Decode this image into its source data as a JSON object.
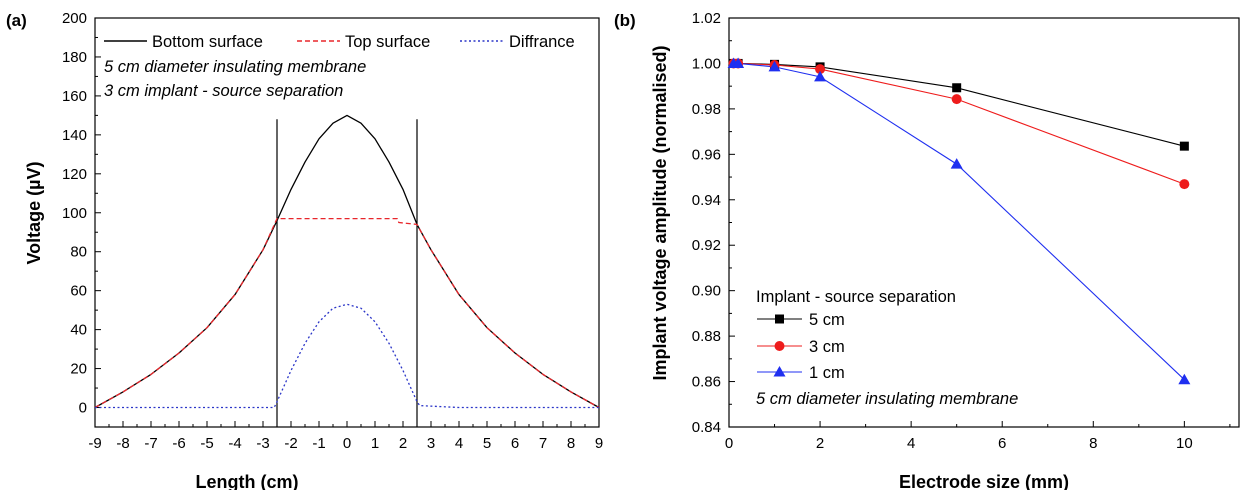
{
  "chart_data": [
    {
      "panel_label": "(a)",
      "type": "line",
      "xlabel": "Length (cm)",
      "ylabel": "Voltage (µV)",
      "xlim": [
        -9,
        9
      ],
      "ylim": [
        -10,
        200
      ],
      "xticks": [
        -9,
        -8,
        -7,
        -6,
        -5,
        -4,
        -3,
        -2,
        -1,
        0,
        1,
        2,
        3,
        4,
        5,
        6,
        7,
        8,
        9
      ],
      "yticks": [
        0,
        20,
        40,
        60,
        80,
        100,
        120,
        140,
        160,
        180,
        200
      ],
      "vertical_lines": [
        -2.5,
        2.5
      ],
      "vline_range": [
        -10,
        148
      ],
      "legend": [
        "Bottom surface",
        "Top surface",
        "Diffrance"
      ],
      "annotations": [
        "5 cm diameter insulating membrane",
        "3 cm implant - source separation"
      ],
      "series": [
        {
          "name": "Bottom surface",
          "color": "#000000",
          "style": "solid",
          "x": [
            -9,
            -8,
            -7,
            -6,
            -5,
            -4,
            -3,
            -2.5,
            -2,
            -1.5,
            -1,
            -0.5,
            0,
            0.5,
            1,
            1.5,
            2,
            2.5,
            3,
            4,
            5,
            6,
            7,
            8,
            9
          ],
          "y": [
            0,
            8,
            17,
            28,
            41,
            58,
            81,
            96,
            112,
            126,
            138,
            146,
            150,
            146,
            138,
            126,
            112,
            94,
            81,
            58,
            41,
            28,
            17,
            8,
            0
          ]
        },
        {
          "name": "Top surface",
          "color": "#e8262b",
          "style": "dashed",
          "x": [
            -9,
            -8,
            -7,
            -6,
            -5,
            -4,
            -3,
            -2.5,
            -2,
            -1,
            0,
            1,
            1.8,
            1.85,
            2.5,
            3,
            4,
            5,
            6,
            7,
            8,
            9
          ],
          "y": [
            0,
            8,
            17,
            28,
            41,
            58,
            81,
            97,
            97,
            97,
            97,
            97,
            97,
            95,
            94,
            81,
            58,
            41,
            28,
            17,
            8,
            0
          ]
        },
        {
          "name": "Diffrance",
          "color": "#2b35c8",
          "style": "dotted",
          "x": [
            -9,
            -4.5,
            -2.6,
            -2.5,
            -2,
            -1.5,
            -1,
            -0.5,
            0,
            0.5,
            1,
            1.5,
            2,
            2.5,
            2.6,
            4,
            5,
            9
          ],
          "y": [
            0,
            0,
            0,
            3,
            19,
            33,
            44,
            51,
            53,
            51,
            44,
            33,
            19,
            3,
            1,
            0,
            0,
            0
          ]
        }
      ]
    },
    {
      "panel_label": "(b)",
      "type": "line",
      "xlabel": "Electrode size (mm)",
      "ylabel": "Implant voltage amplitude (normalised)",
      "xlim": [
        0,
        11.2
      ],
      "ylim": [
        0.84,
        1.02
      ],
      "xticks": [
        0,
        2,
        4,
        6,
        8,
        10
      ],
      "ytick_labels": [
        "0.84",
        "0.86",
        "0.88",
        "0.90",
        "0.92",
        "0.94",
        "0.96",
        "0.98",
        "1.00",
        "1.02"
      ],
      "legend_title": "Implant - source separation",
      "annotation": "5 cm diameter insulating membrane",
      "series": [
        {
          "name": "5 cm",
          "color": "#000000",
          "marker": "square",
          "x": [
            0.1,
            0.2,
            1,
            2,
            5,
            10
          ],
          "y": [
            1.0,
            1.0,
            0.9996,
            0.9985,
            0.9893,
            0.9636
          ]
        },
        {
          "name": "3 cm",
          "color": "#ee1c1c",
          "marker": "circle",
          "x": [
            0.1,
            0.2,
            1,
            2,
            5,
            10
          ],
          "y": [
            1.0,
            1.0,
            0.9993,
            0.9975,
            0.9843,
            0.9469
          ]
        },
        {
          "name": "1 cm",
          "color": "#1f2ff0",
          "marker": "triangle",
          "x": [
            0.1,
            0.2,
            1,
            2,
            5,
            10
          ],
          "y": [
            1.0,
            1.0,
            0.9985,
            0.9941,
            0.9557,
            0.8608
          ]
        }
      ]
    }
  ]
}
